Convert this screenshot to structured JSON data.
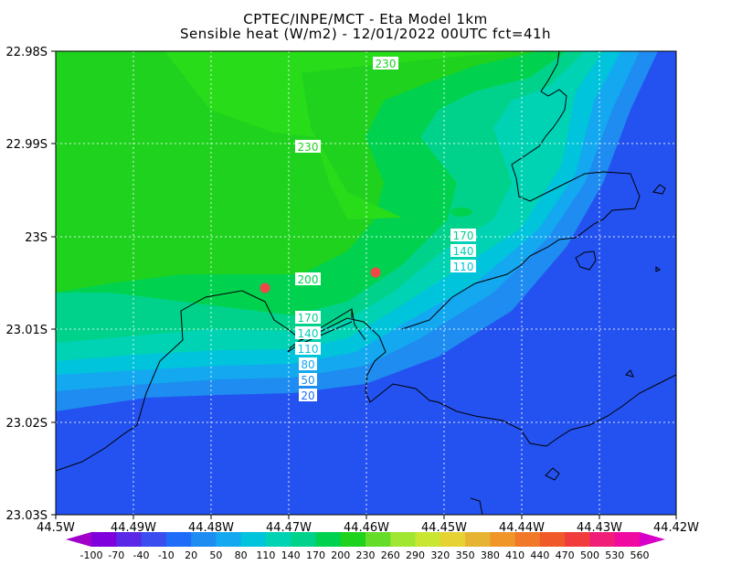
{
  "header": {
    "line1": "CPTEC/INPE/MCT -  Eta Model 1km",
    "line2": "Sensible heat (W/m2) - 12/01/2022 00UTC fct=41h"
  },
  "axes": {
    "lat_labels": [
      "22.98S",
      "22.99S",
      "23S",
      "23.01S",
      "23.02S",
      "23.03S"
    ],
    "lon_labels": [
      "44.5W",
      "44.49W",
      "44.48W",
      "44.47W",
      "44.46W",
      "44.45W",
      "44.44W",
      "44.43W",
      "44.42W"
    ]
  },
  "contour_labels": [
    "230",
    "230",
    "200",
    "170",
    "140",
    "110",
    "170",
    "140",
    "110",
    "80",
    "50",
    "20"
  ],
  "colorbar": {
    "values": [
      "-100",
      "-70",
      "-40",
      "-10",
      "20",
      "50",
      "80",
      "110",
      "140",
      "170",
      "200",
      "230",
      "260",
      "290",
      "320",
      "350",
      "380",
      "410",
      "440",
      "470",
      "500",
      "530",
      "560"
    ],
    "colors": [
      "#a000c8",
      "#7f00dc",
      "#5a28e6",
      "#3a4ef0",
      "#1e6cf8",
      "#1e8cf0",
      "#14a8f0",
      "#00c4dc",
      "#00d2b4",
      "#00d28c",
      "#00d250",
      "#1ed21e",
      "#64dc28",
      "#a0e632",
      "#c8e632",
      "#e6d232",
      "#e6b432",
      "#f09628",
      "#f07828",
      "#f05a28",
      "#f03c3c",
      "#f01e78",
      "#f00aa0",
      "#d800c8"
    ]
  },
  "colors": {
    "ocean": "#2452f0",
    "field_green": "#22d61e",
    "marker": "#f04848"
  }
}
